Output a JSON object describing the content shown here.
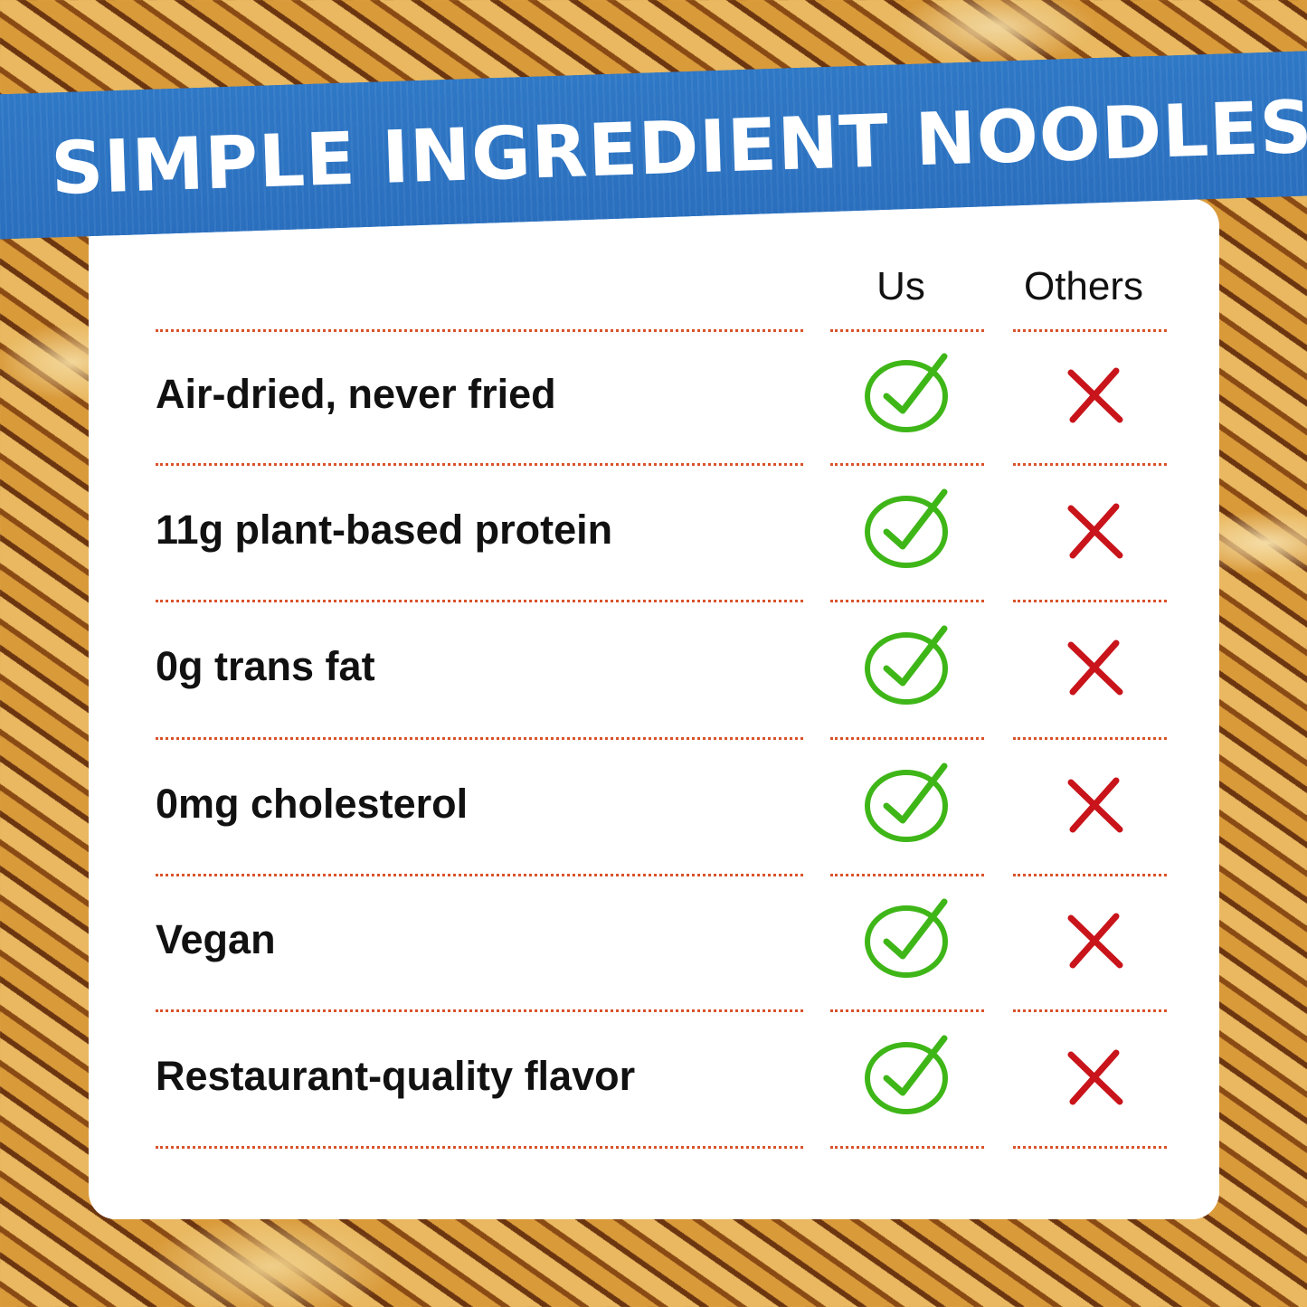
{
  "banner": {
    "title": "SIMPLE INGREDIENT NOODLES"
  },
  "table": {
    "columns": [
      "Us",
      "Others"
    ],
    "rows": [
      {
        "label": "Air-dried, never fried",
        "us": "check",
        "others": "cross"
      },
      {
        "label": "11g plant-based protein",
        "us": "check",
        "others": "cross"
      },
      {
        "label": "0g trans fat",
        "us": "check",
        "others": "cross"
      },
      {
        "label": "0mg cholesterol",
        "us": "check",
        "others": "cross"
      },
      {
        "label": "Vegan",
        "us": "check",
        "others": "cross"
      },
      {
        "label": "Restaurant-quality flavor",
        "us": "check",
        "others": "cross"
      }
    ]
  },
  "colors": {
    "tape": "#2a72c0",
    "check": "#3fb618",
    "cross": "#c8141a",
    "divider": "#d9532b"
  },
  "icons": {
    "check": "circled-check-icon",
    "cross": "x-mark-icon"
  }
}
